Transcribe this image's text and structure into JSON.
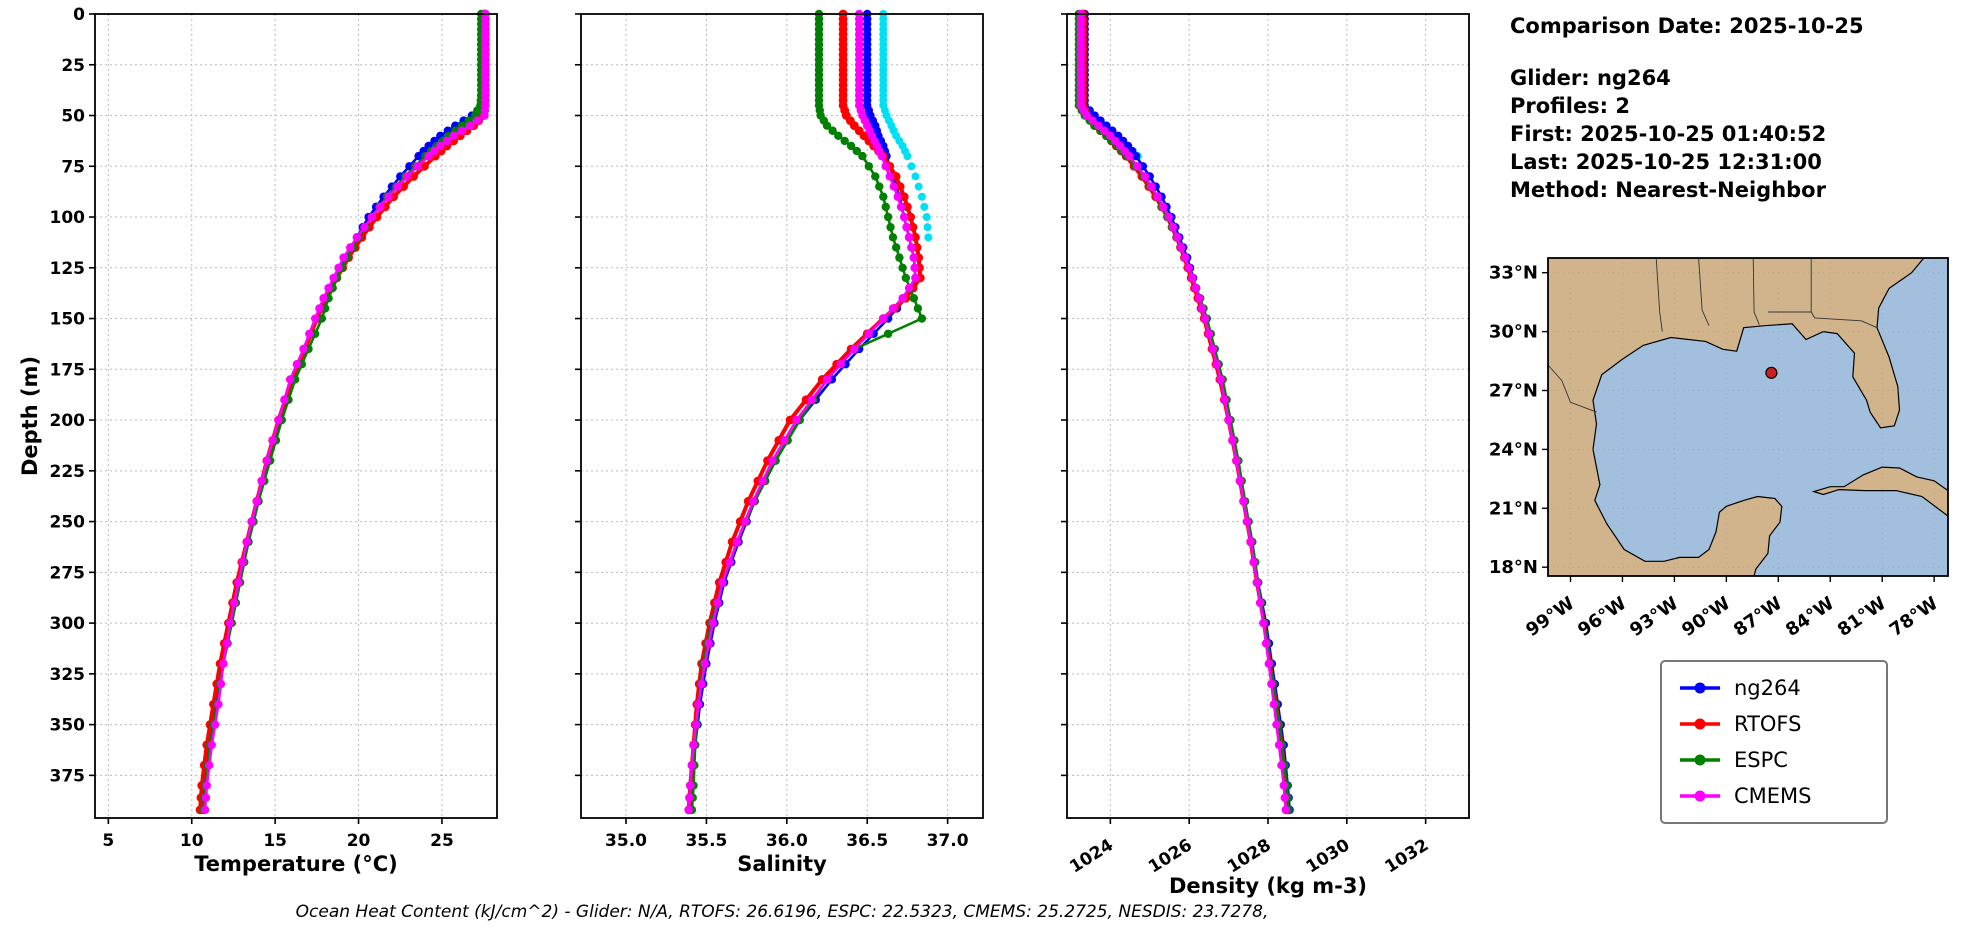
{
  "info": {
    "date": "Comparison Date: 2025-10-25",
    "glider": "Glider: ng264",
    "profiles": "Profiles: 2",
    "first": "First: 2025-10-25 01:40:52",
    "last": "Last: 2025-10-25 12:31:00",
    "method": "Method: Nearest-Neighbor"
  },
  "caption": "Ocean Heat Content (kJ/cm^2) - Glider: N/A,  RTOFS: 26.6196,  ESPC: 22.5323,  CMEMS: 25.2725,  NESDIS: 23.7278,",
  "legend": {
    "items": [
      {
        "label": "ng264",
        "color": "#0000ff"
      },
      {
        "label": "RTOFS",
        "color": "#ff0000"
      },
      {
        "label": "ESPC",
        "color": "#008000"
      },
      {
        "label": "CMEMS",
        "color": "#ff00ff"
      }
    ]
  },
  "map": {
    "lat_ticks": [
      {
        "v": 33,
        "label": "33°N"
      },
      {
        "v": 30,
        "label": "30°N"
      },
      {
        "v": 27,
        "label": "27°N"
      },
      {
        "v": 24,
        "label": "24°N"
      },
      {
        "v": 21,
        "label": "21°N"
      },
      {
        "v": 18,
        "label": "18°N"
      }
    ],
    "lon_ticks": [
      {
        "v": -99,
        "label": "99°W"
      },
      {
        "v": -96,
        "label": "96°W"
      },
      {
        "v": -93,
        "label": "93°W"
      },
      {
        "v": -90,
        "label": "90°W"
      },
      {
        "v": -87,
        "label": "87°W"
      },
      {
        "v": -84,
        "label": "84°W"
      },
      {
        "v": -81,
        "label": "81°W"
      },
      {
        "v": -78,
        "label": "78°W"
      }
    ],
    "marker": {
      "lon": -87.4,
      "lat": 27.9,
      "color": "#cc1f1f"
    },
    "land_color": "#d2b48c",
    "water_color": "#a2c0dd"
  },
  "chart_data": {
    "type": "line",
    "ylabel": "Depth (m)",
    "ylim": [
      0,
      396
    ],
    "yticks": [
      0,
      25,
      50,
      75,
      100,
      125,
      150,
      175,
      200,
      225,
      250,
      275,
      300,
      325,
      350,
      375
    ],
    "panels": [
      {
        "key": "t",
        "xlabel": "Temperature (°C)",
        "xlim": [
          4.2,
          28.3
        ],
        "xticks": [
          "5",
          "10",
          "15",
          "20",
          "25"
        ],
        "rotate": false
      },
      {
        "key": "s",
        "xlabel": "Salinity",
        "xlim": [
          34.72,
          37.22
        ],
        "xticks": [
          "35.0",
          "35.5",
          "36.0",
          "36.5",
          "37.0"
        ],
        "rotate": false
      },
      {
        "key": "d",
        "xlabel": "Density (kg m-3)",
        "xlim": [
          1022.9,
          1033.1
        ],
        "xticks": [
          "1024",
          "1026",
          "1028",
          "1030",
          "1032"
        ],
        "rotate": true
      }
    ],
    "depths": [
      0,
      5,
      10,
      15,
      20,
      25,
      30,
      35,
      40,
      45,
      50,
      55,
      60,
      65,
      70,
      80,
      90,
      100,
      110,
      120,
      130,
      140,
      150,
      165,
      180,
      200,
      220,
      240,
      260,
      280,
      300,
      320,
      340,
      360,
      380,
      392
    ],
    "series": [
      {
        "name": "obs-cyan",
        "color": "#00e0f5",
        "line": false,
        "lw": 0,
        "r": 4.0,
        "in_legend": false,
        "t": [
          27.55,
          27.55,
          27.55,
          27.55,
          27.55,
          27.55,
          27.55,
          27.55,
          27.55,
          27.5,
          27.3,
          26.6,
          25.9,
          25.2,
          24.6,
          null,
          null,
          null,
          null,
          null,
          null,
          null,
          null,
          null,
          null,
          null,
          null,
          null,
          null,
          null,
          null,
          null,
          null,
          null,
          null,
          null
        ],
        "s": [
          36.6,
          36.6,
          36.6,
          36.6,
          36.6,
          36.6,
          36.6,
          36.6,
          36.6,
          36.6,
          36.62,
          36.65,
          36.68,
          36.72,
          36.75,
          36.8,
          36.84,
          36.87,
          36.88,
          null,
          null,
          null,
          null,
          null,
          null,
          null,
          null,
          null,
          null,
          null,
          null,
          null,
          null,
          null,
          null,
          null
        ],
        "d": [
          1023.3,
          1023.3,
          1023.3,
          1023.3,
          1023.3,
          1023.3,
          1023.3,
          1023.3,
          1023.3,
          1023.3,
          1023.55,
          1023.85,
          1024.15,
          1024.45,
          1024.7,
          null,
          null,
          null,
          null,
          null,
          null,
          null,
          null,
          null,
          null,
          null,
          null,
          null,
          null,
          null,
          null,
          null,
          null,
          null,
          null,
          null
        ]
      },
      {
        "name": "ng264",
        "color": "#0000ff",
        "line": true,
        "lw": 2.6,
        "r": 4.2,
        "in_legend": true,
        "t": [
          27.5,
          27.5,
          27.5,
          27.5,
          27.5,
          27.5,
          27.5,
          27.5,
          27.5,
          27.45,
          26.8,
          25.8,
          24.9,
          24.2,
          23.6,
          22.5,
          21.5,
          20.6,
          19.9,
          19.2,
          18.6,
          18.0,
          17.5,
          16.8,
          16.1,
          15.3,
          14.6,
          14.0,
          13.4,
          12.8,
          12.3,
          11.8,
          11.4,
          11.0,
          10.7,
          10.6
        ],
        "s": [
          36.5,
          36.5,
          36.5,
          36.5,
          36.5,
          36.5,
          36.5,
          36.5,
          36.5,
          36.5,
          36.52,
          36.55,
          36.57,
          36.6,
          36.62,
          36.66,
          36.7,
          36.73,
          36.76,
          36.79,
          36.8,
          36.74,
          36.63,
          36.45,
          36.28,
          36.08,
          35.93,
          35.8,
          35.7,
          35.61,
          35.55,
          35.5,
          35.46,
          35.43,
          35.41,
          35.4
        ],
        "d": [
          1023.35,
          1023.35,
          1023.35,
          1023.35,
          1023.35,
          1023.35,
          1023.35,
          1023.35,
          1023.35,
          1023.35,
          1023.6,
          1023.9,
          1024.2,
          1024.45,
          1024.65,
          1025.0,
          1025.3,
          1025.55,
          1025.75,
          1025.95,
          1026.1,
          1026.25,
          1026.4,
          1026.6,
          1026.8,
          1027.0,
          1027.2,
          1027.4,
          1027.6,
          1027.75,
          1027.95,
          1028.1,
          1028.25,
          1028.4,
          1028.5,
          1028.55
        ]
      },
      {
        "name": "RTOFS",
        "color": "#ff0000",
        "line": true,
        "lw": 4.0,
        "r": 4.4,
        "in_legend": true,
        "t": [
          27.6,
          27.6,
          27.6,
          27.6,
          27.6,
          27.6,
          27.6,
          27.6,
          27.6,
          27.6,
          27.5,
          26.9,
          26.1,
          25.3,
          24.6,
          23.3,
          22.1,
          21.1,
          20.2,
          19.4,
          18.7,
          18.1,
          17.5,
          16.8,
          16.0,
          15.2,
          14.5,
          13.9,
          13.3,
          12.7,
          12.2,
          11.7,
          11.3,
          10.9,
          10.6,
          10.5
        ],
        "s": [
          36.35,
          36.35,
          36.35,
          36.35,
          36.35,
          36.35,
          36.35,
          36.35,
          36.35,
          36.35,
          36.37,
          36.42,
          36.48,
          36.54,
          36.6,
          36.68,
          36.73,
          36.77,
          36.8,
          36.82,
          36.83,
          36.74,
          36.6,
          36.4,
          36.22,
          36.02,
          35.88,
          35.76,
          35.66,
          35.58,
          35.52,
          35.47,
          35.44,
          35.42,
          35.4,
          35.39
        ],
        "d": [
          1023.3,
          1023.3,
          1023.3,
          1023.3,
          1023.3,
          1023.3,
          1023.3,
          1023.3,
          1023.3,
          1023.3,
          1023.4,
          1023.6,
          1023.9,
          1024.15,
          1024.4,
          1024.8,
          1025.15,
          1025.45,
          1025.68,
          1025.88,
          1026.05,
          1026.22,
          1026.38,
          1026.58,
          1026.78,
          1027.0,
          1027.2,
          1027.38,
          1027.56,
          1027.72,
          1027.9,
          1028.05,
          1028.2,
          1028.35,
          1028.45,
          1028.5
        ]
      },
      {
        "name": "ESPC",
        "color": "#008000",
        "line": true,
        "lw": 2.6,
        "r": 4.2,
        "in_legend": true,
        "t": [
          27.35,
          27.35,
          27.35,
          27.35,
          27.35,
          27.35,
          27.35,
          27.35,
          27.35,
          27.3,
          27.0,
          26.2,
          25.4,
          24.7,
          24.0,
          22.8,
          21.7,
          20.8,
          20.0,
          19.3,
          18.7,
          18.2,
          17.8,
          17.0,
          16.2,
          15.4,
          14.7,
          14.0,
          13.4,
          12.9,
          12.4,
          11.9,
          11.5,
          11.1,
          10.8,
          10.7
        ],
        "s": [
          36.2,
          36.2,
          36.2,
          36.2,
          36.2,
          36.2,
          36.2,
          36.2,
          36.2,
          36.2,
          36.21,
          36.25,
          36.32,
          36.4,
          36.47,
          36.55,
          36.6,
          36.63,
          36.66,
          36.7,
          36.74,
          36.79,
          36.84,
          36.42,
          36.25,
          36.08,
          35.93,
          35.8,
          35.69,
          35.6,
          35.53,
          35.48,
          35.45,
          35.43,
          35.42,
          35.41
        ],
        "d": [
          1023.2,
          1023.2,
          1023.2,
          1023.2,
          1023.2,
          1023.2,
          1023.2,
          1023.2,
          1023.2,
          1023.2,
          1023.35,
          1023.6,
          1023.9,
          1024.18,
          1024.42,
          1024.85,
          1025.18,
          1025.45,
          1025.68,
          1025.9,
          1026.08,
          1026.28,
          1026.45,
          1026.65,
          1026.85,
          1027.05,
          1027.25,
          1027.42,
          1027.6,
          1027.75,
          1027.9,
          1028.05,
          1028.2,
          1028.35,
          1028.48,
          1028.52
        ]
      },
      {
        "name": "CMEMS",
        "color": "#ff00ff",
        "line": true,
        "lw": 2.6,
        "r": 4.2,
        "in_legend": true,
        "t": [
          27.6,
          27.6,
          27.6,
          27.6,
          27.6,
          27.6,
          27.6,
          27.6,
          27.6,
          27.6,
          27.55,
          26.7,
          25.7,
          24.9,
          24.2,
          22.9,
          21.8,
          20.8,
          19.9,
          19.1,
          18.5,
          17.9,
          17.4,
          16.7,
          15.9,
          15.2,
          14.5,
          13.9,
          13.3,
          12.8,
          12.3,
          11.9,
          11.6,
          11.2,
          10.9,
          10.8
        ],
        "s": [
          36.45,
          36.45,
          36.45,
          36.45,
          36.45,
          36.45,
          36.45,
          36.45,
          36.45,
          36.45,
          36.47,
          36.5,
          36.53,
          36.56,
          36.59,
          36.64,
          36.69,
          36.73,
          36.76,
          36.79,
          36.8,
          36.72,
          36.6,
          36.42,
          36.25,
          36.06,
          35.91,
          35.79,
          35.69,
          35.6,
          35.54,
          35.49,
          35.45,
          35.42,
          35.4,
          35.39
        ],
        "d": [
          1023.25,
          1023.25,
          1023.25,
          1023.25,
          1023.25,
          1023.25,
          1023.25,
          1023.25,
          1023.25,
          1023.25,
          1023.4,
          1023.7,
          1024.0,
          1024.25,
          1024.48,
          1024.88,
          1025.2,
          1025.48,
          1025.7,
          1025.9,
          1026.08,
          1026.25,
          1026.4,
          1026.6,
          1026.8,
          1027.0,
          1027.2,
          1027.38,
          1027.56,
          1027.72,
          1027.88,
          1028.02,
          1028.15,
          1028.28,
          1028.4,
          1028.45
        ]
      }
    ]
  }
}
